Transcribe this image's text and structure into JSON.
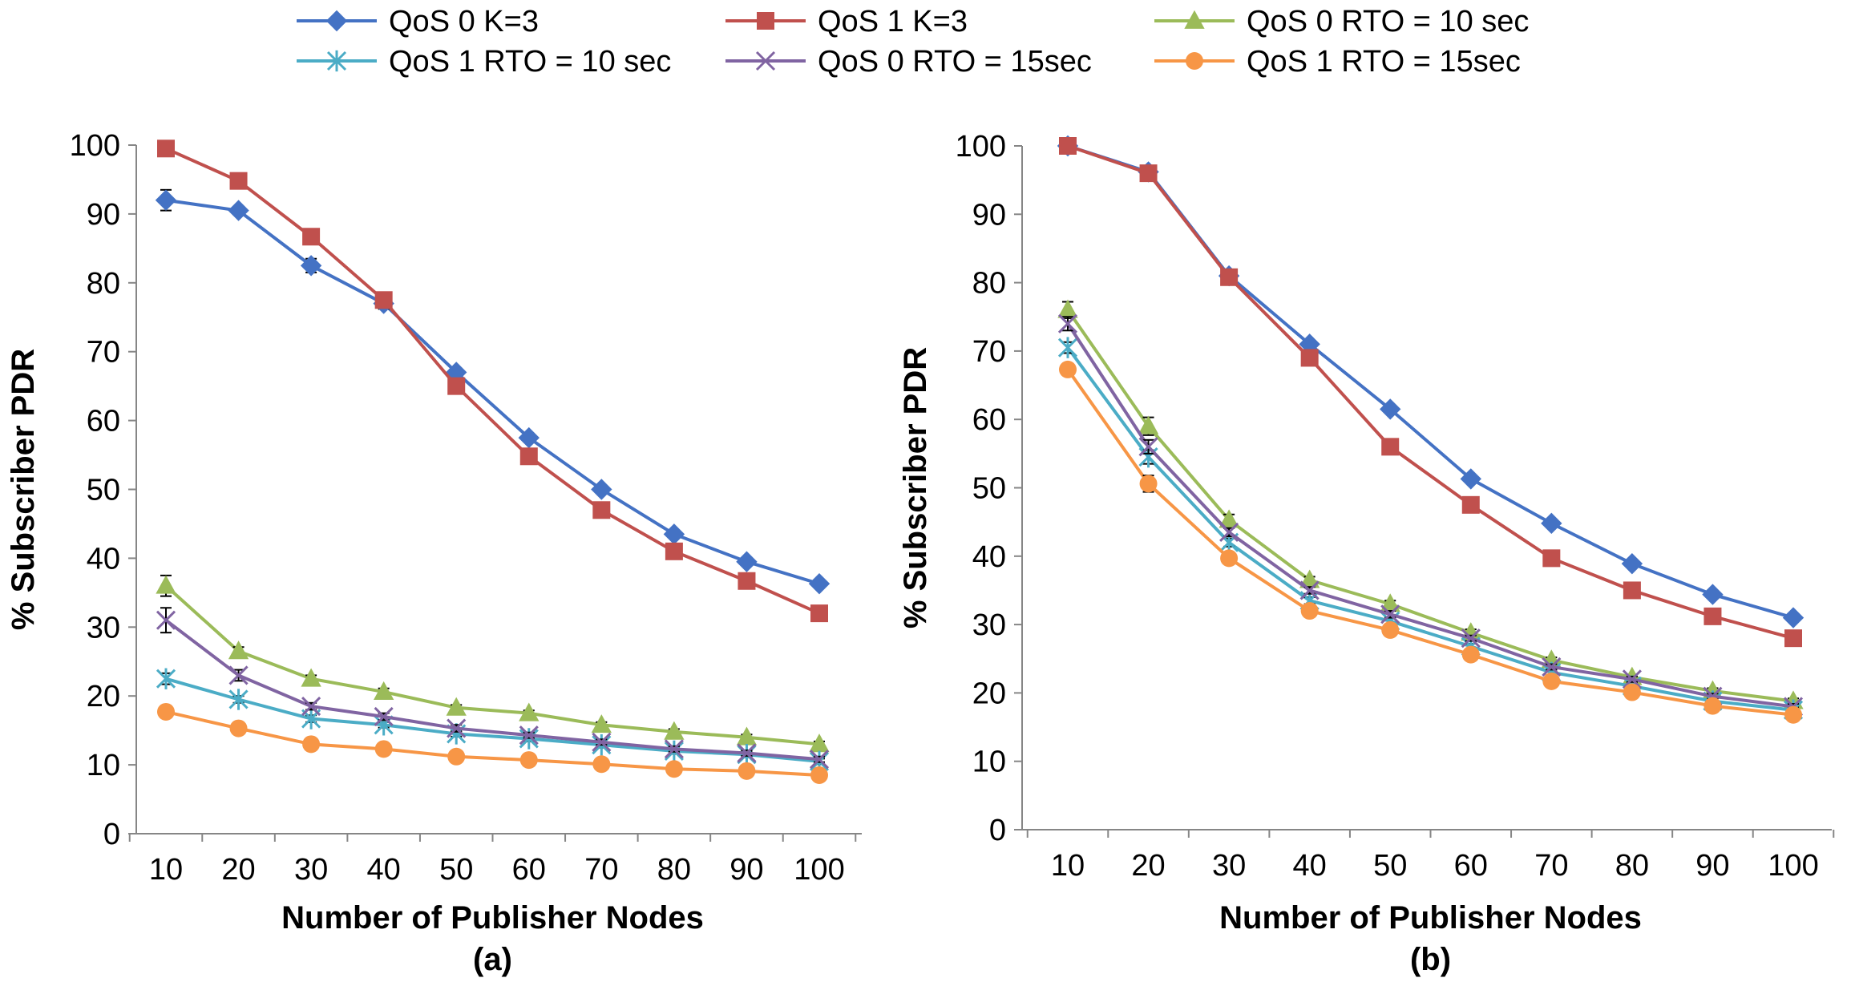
{
  "colors": {
    "qos0_k3": "#4472C4",
    "qos1_k3": "#C0504D",
    "qos0_rto10": "#9BBB59",
    "qos1_rto10": "#4BACC6",
    "qos0_rto15": "#8064A2",
    "qos1_rto15": "#F79646"
  },
  "legend": [
    {
      "name": "QoS 0 K=3",
      "marker": "diamond-icon"
    },
    {
      "name": "QoS 1 K=3",
      "marker": "square-icon"
    },
    {
      "name": "QoS 0 RTO = 10 sec",
      "marker": "triangle-icon"
    },
    {
      "name": "QoS 1 RTO = 10 sec",
      "marker": "asterisk-icon"
    },
    {
      "name": "QoS 0 RTO = 15sec",
      "marker": "x-icon"
    },
    {
      "name": "QoS 1 RTO = 15sec",
      "marker": "circle-icon"
    }
  ],
  "chart_data": [
    {
      "type": "line",
      "caption": "(a)",
      "xlabel": "Number of Publisher Nodes",
      "ylabel": "% Subscriber PDR",
      "x": [
        10,
        20,
        30,
        40,
        50,
        60,
        70,
        80,
        90,
        100
      ],
      "ylim": [
        0,
        100
      ],
      "yticks": [
        0,
        10,
        20,
        30,
        40,
        50,
        60,
        70,
        80,
        90,
        100
      ],
      "series": [
        {
          "name": "QoS 0 K=3",
          "values": [
            92,
            90.5,
            82.5,
            77,
            67,
            57.5,
            50,
            43.5,
            39.5,
            36.3
          ],
          "errors": [
            1.5,
            0.5,
            1,
            0.8,
            0.6,
            0.6,
            0.5,
            0.5,
            0.5,
            0.5
          ]
        },
        {
          "name": "QoS 1 K=3",
          "values": [
            99.5,
            94.8,
            86.7,
            77.5,
            65,
            54.8,
            47,
            41,
            36.7,
            32
          ],
          "errors": [
            0.3,
            0.3,
            0.5,
            0.5,
            0.5,
            0.5,
            0.5,
            0.5,
            0.5,
            0.5
          ]
        },
        {
          "name": "QoS 0 RTO = 10 sec",
          "values": [
            36,
            26.5,
            22.5,
            20.6,
            18.3,
            17.5,
            15.8,
            14.8,
            14,
            13
          ],
          "errors": [
            1.5,
            0.6,
            0.5,
            0.5,
            0.4,
            0.4,
            0.4,
            0.4,
            0.4,
            0.4
          ]
        },
        {
          "name": "QoS 1 RTO = 10 sec",
          "values": [
            22.5,
            19.5,
            16.7,
            15.8,
            14.5,
            13.8,
            12.9,
            12,
            11.5,
            10.5
          ],
          "errors": [
            0.8,
            0.5,
            0.5,
            0.4,
            0.4,
            0.4,
            0.4,
            0.4,
            0.4,
            0.4
          ]
        },
        {
          "name": "QoS 0 RTO = 15sec",
          "values": [
            31,
            23,
            18.5,
            17,
            15.3,
            14.3,
            13.3,
            12.3,
            11.7,
            10.8
          ],
          "errors": [
            1.8,
            0.8,
            0.5,
            0.5,
            0.5,
            0.4,
            0.4,
            0.4,
            0.4,
            0.4
          ]
        },
        {
          "name": "QoS 1 RTO = 15sec",
          "values": [
            17.7,
            15.3,
            13,
            12.3,
            11.2,
            10.7,
            10.1,
            9.4,
            9.1,
            8.5
          ],
          "errors": [
            0.6,
            0.4,
            0.4,
            0.4,
            0.3,
            0.3,
            0.3,
            0.3,
            0.3,
            0.3
          ]
        }
      ]
    },
    {
      "type": "line",
      "caption": "(b)",
      "xlabel": "Number of Publisher Nodes",
      "ylabel": "% Subscriber PDR",
      "x": [
        10,
        20,
        30,
        40,
        50,
        60,
        70,
        80,
        90,
        100
      ],
      "ylim": [
        0,
        100
      ],
      "yticks": [
        0,
        10,
        20,
        30,
        40,
        50,
        60,
        70,
        80,
        90,
        100
      ],
      "series": [
        {
          "name": "QoS 0 K=3",
          "values": [
            100,
            96.2,
            81,
            71,
            61.5,
            51.3,
            44.8,
            38.9,
            34.4,
            31
          ],
          "errors": [
            0.3,
            0.3,
            0.3,
            0.3,
            0.3,
            0.3,
            0.3,
            0.3,
            0.3,
            0.3
          ]
        },
        {
          "name": "QoS 1 K=3",
          "values": [
            100,
            96,
            80.8,
            69,
            56,
            47.5,
            39.7,
            35,
            31.2,
            28
          ],
          "errors": [
            0.3,
            0.3,
            0.3,
            0.3,
            0.3,
            0.3,
            0.3,
            0.3,
            0.3,
            0.3
          ]
        },
        {
          "name": "QoS 0 RTO = 10 sec",
          "values": [
            76,
            59,
            45.3,
            36.5,
            33,
            28.8,
            24.8,
            22.3,
            20.3,
            18.8
          ],
          "errors": [
            1.2,
            1.3,
            0.8,
            0.5,
            0.5,
            0.5,
            0.4,
            0.4,
            0.4,
            0.4
          ]
        },
        {
          "name": "QoS 1 RTO = 10 sec",
          "values": [
            70.5,
            54.5,
            42,
            33.5,
            30.5,
            26.8,
            23,
            21,
            18.8,
            17.5
          ],
          "errors": [
            0.8,
            1,
            0.6,
            0.5,
            0.5,
            0.4,
            0.4,
            0.4,
            0.4,
            0.4
          ]
        },
        {
          "name": "QoS 0 RTO = 15sec",
          "values": [
            74,
            56,
            43.5,
            35,
            31.5,
            28,
            23.8,
            22,
            19.5,
            18
          ],
          "errors": [
            1,
            1,
            0.6,
            0.5,
            0.5,
            0.4,
            0.4,
            0.4,
            0.4,
            0.4
          ]
        },
        {
          "name": "QoS 1 RTO = 15sec",
          "values": [
            67.3,
            50.6,
            39.7,
            32,
            29.2,
            25.6,
            21.7,
            20.1,
            18.1,
            16.8
          ],
          "errors": [
            0.8,
            1.2,
            0.6,
            0.5,
            0.5,
            0.4,
            0.4,
            0.4,
            0.4,
            0.4
          ]
        }
      ]
    }
  ]
}
